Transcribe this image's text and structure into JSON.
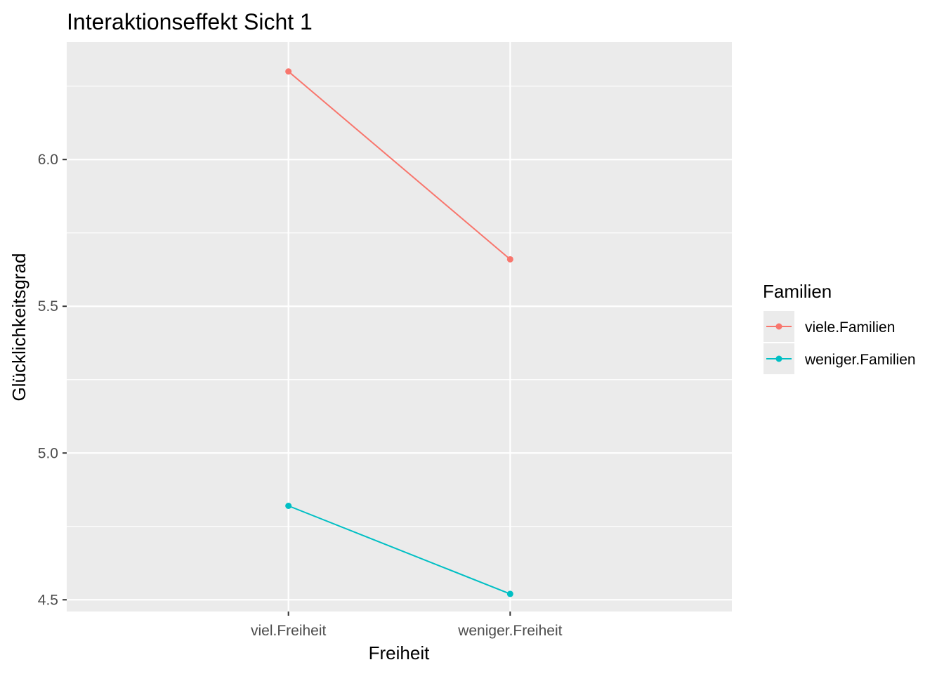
{
  "chart_data": {
    "type": "line",
    "title": "Interaktionseffekt Sicht 1",
    "xlabel": "Freiheit",
    "ylabel": "Glücklichkeitsgrad",
    "categories": [
      "viel.Freiheit",
      "weniger.Freiheit"
    ],
    "ylim": [
      4.46,
      6.4
    ],
    "yticks": [
      4.5,
      5.0,
      5.5,
      6.0
    ],
    "ytick_labels": [
      "4.5",
      "5.0",
      "5.5",
      "6.0"
    ],
    "grid": true,
    "legend": {
      "title": "Familien",
      "position": "right"
    },
    "series": [
      {
        "name": "viele.Familien",
        "color": "#F8766D",
        "values": [
          6.3,
          5.66
        ]
      },
      {
        "name": "weniger.Familien",
        "color": "#00BFC4",
        "values": [
          4.82,
          4.52
        ]
      }
    ]
  }
}
